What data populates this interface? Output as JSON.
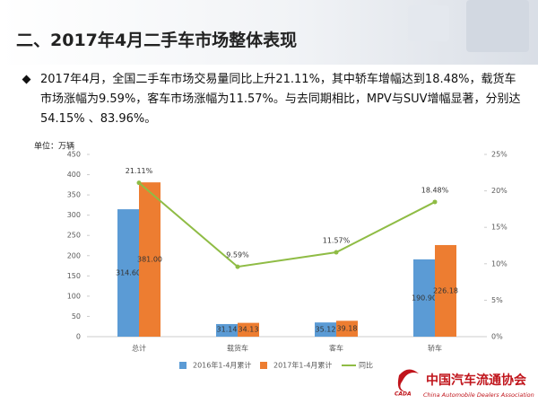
{
  "header": {
    "title": "二、2017年4月二手车市场整体表现"
  },
  "bullet": "2017年4月，全国二手车市场交易量同比上升21.11%，其中轿车增幅达到18.48%，载货车市场涨幅为9.59%，客车市场涨幅为11.57%。与去同期相比，MPV与SUV增幅显著，分别达54.15% 、83.96%。",
  "chart_data": {
    "type": "bar",
    "unit": "单位：万辆",
    "categories": [
      "总计",
      "载货车",
      "客车",
      "轿车"
    ],
    "series": [
      {
        "name": "2016年1-4月累计",
        "color": "#5b9bd5",
        "values": [
          314.6,
          31.14,
          35.12,
          190.9
        ],
        "value_labels": [
          "314.60",
          "31.14",
          "35.12",
          "190.90"
        ]
      },
      {
        "name": "2017年1-4月累计",
        "color": "#ed7d31",
        "values": [
          381.0,
          34.13,
          39.18,
          226.18
        ],
        "value_labels": [
          "381.00",
          "34.13",
          "39.18",
          "226.18"
        ]
      },
      {
        "name": "同比",
        "color": "#8fbc45",
        "type": "line",
        "axis": "y2",
        "values": [
          21.11,
          9.59,
          11.57,
          18.48
        ],
        "value_labels": [
          "21.11%",
          "9.59%",
          "11.57%",
          "18.48%"
        ]
      }
    ],
    "ylim": [
      0,
      450
    ],
    "yticks": [
      0,
      50,
      100,
      150,
      200,
      250,
      300,
      350,
      400,
      450
    ],
    "y2lim": [
      0,
      25
    ],
    "y2ticks": [
      {
        "value": 0,
        "label": "0%"
      },
      {
        "value": 5,
        "label": "5%"
      },
      {
        "value": 10,
        "label": "10%"
      },
      {
        "value": 15,
        "label": "15%"
      },
      {
        "value": 20,
        "label": "20%"
      },
      {
        "value": 25,
        "label": "25%"
      }
    ]
  },
  "footer": {
    "logo_cn": "中国汽车流通协会",
    "logo_en": "China Automobile Dealers Association",
    "logo_abbr": "CADA"
  }
}
